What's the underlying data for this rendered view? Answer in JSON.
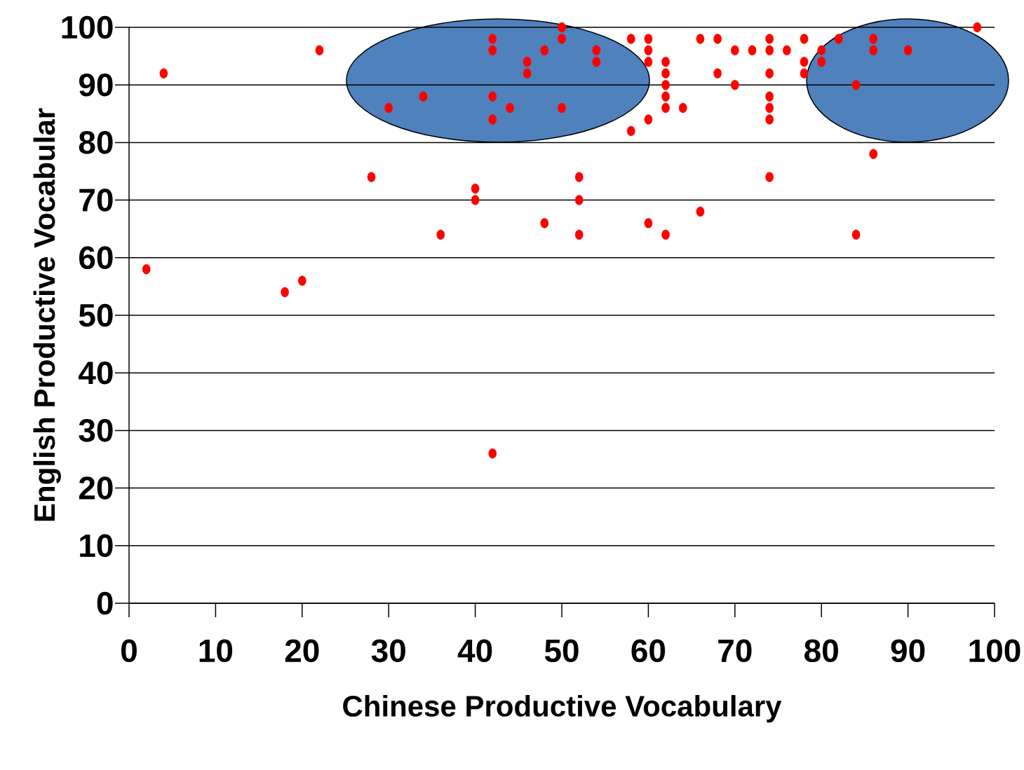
{
  "chart_data": {
    "type": "scatter",
    "xlabel": "Chinese Productive Vocabulary",
    "ylabel": "English Productive Vocabular",
    "series": [
      {
        "color": "#ff0000",
        "x": [
          2,
          4,
          22,
          18,
          20,
          28,
          30,
          34,
          36,
          40,
          40,
          42,
          42,
          42,
          42,
          42,
          44,
          46,
          46,
          48,
          48,
          50,
          50,
          50,
          52,
          52,
          52,
          54,
          54,
          58,
          58,
          60,
          60,
          60,
          60,
          60,
          62,
          62,
          62,
          62,
          62,
          62,
          64,
          66,
          66,
          68,
          68,
          70,
          70,
          72,
          74,
          74,
          74,
          74,
          74,
          74,
          74,
          76,
          78,
          78,
          78,
          80,
          80,
          82,
          84,
          84,
          86,
          86,
          86,
          90,
          98
        ],
        "values": [
          58,
          92,
          96,
          54,
          56,
          74,
          86,
          88,
          64,
          72,
          70,
          98,
          96,
          88,
          84,
          26,
          86,
          94,
          92,
          96,
          66,
          100,
          98,
          86,
          74,
          70,
          64,
          96,
          94,
          98,
          82,
          98,
          96,
          94,
          84,
          66,
          94,
          92,
          90,
          88,
          86,
          64,
          86,
          98,
          68,
          98,
          92,
          96,
          90,
          96,
          98,
          96,
          92,
          88,
          86,
          84,
          74,
          96,
          98,
          94,
          92,
          96,
          94,
          98,
          90,
          64,
          98,
          96,
          78,
          96,
          100
        ]
      }
    ],
    "xlim": [
      0,
      100
    ],
    "ylim": [
      0,
      100
    ],
    "xticks": [
      0,
      10,
      20,
      30,
      40,
      50,
      60,
      70,
      80,
      90,
      100
    ],
    "yticks": [
      0,
      10,
      20,
      30,
      40,
      50,
      60,
      70,
      80,
      90,
      100
    ],
    "grid": "y",
    "marker": "circle"
  }
}
